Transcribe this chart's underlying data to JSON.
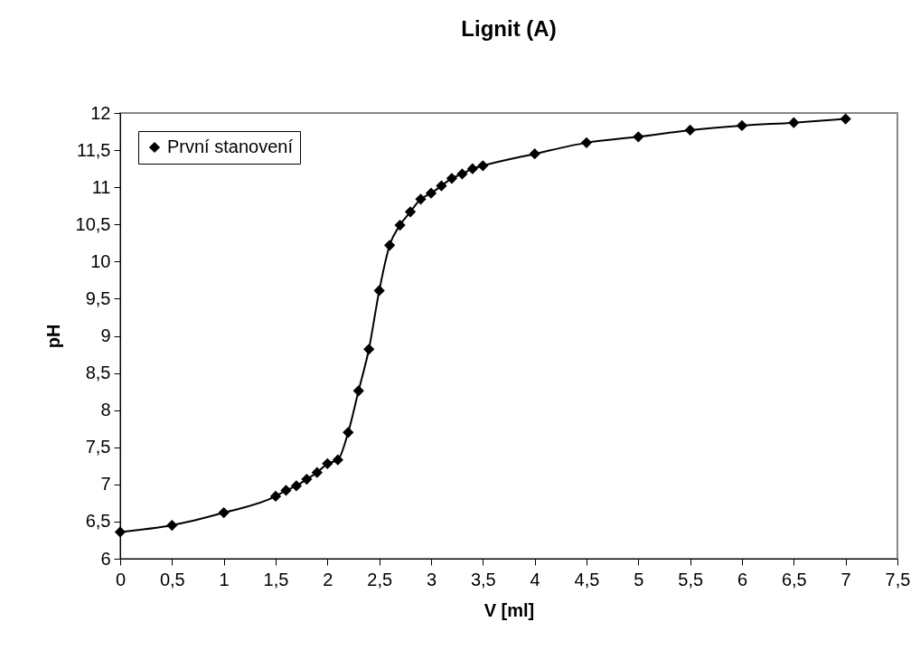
{
  "chart_data": {
    "type": "line",
    "title": "Lignit (A)",
    "xlabel": "V [ml]",
    "ylabel": "pH",
    "x": [
      0,
      0.5,
      1,
      1.5,
      1.6,
      1.7,
      1.8,
      1.9,
      2.0,
      2.1,
      2.2,
      2.3,
      2.4,
      2.5,
      2.6,
      2.7,
      2.8,
      2.9,
      3.0,
      3.1,
      3.2,
      3.3,
      3.4,
      3.5,
      4,
      4.5,
      5,
      5.5,
      6,
      6.5,
      7
    ],
    "series": [
      {
        "name": "První stanovení",
        "color": "#000000",
        "values": [
          6.36,
          6.45,
          6.62,
          6.84,
          6.92,
          6.98,
          7.07,
          7.16,
          7.28,
          7.33,
          7.7,
          8.26,
          8.82,
          9.61,
          10.22,
          10.49,
          10.67,
          10.84,
          10.92,
          11.02,
          11.12,
          11.18,
          11.25,
          11.29,
          11.45,
          11.6,
          11.68,
          11.77,
          11.83,
          11.87,
          11.92
        ]
      }
    ],
    "xlim": [
      0,
      7.5
    ],
    "xticks": [
      0,
      {
        "value": 0.5,
        "label": "0,5"
      },
      1,
      {
        "value": 1.5,
        "label": "1,5"
      },
      2,
      {
        "value": 2.5,
        "label": "2,5"
      },
      3,
      {
        "value": 3.5,
        "label": "3,5"
      },
      4,
      {
        "value": 4.5,
        "label": "4,5"
      },
      5,
      {
        "value": 5.5,
        "label": "5,5"
      },
      6,
      {
        "value": 6.5,
        "label": "6,5"
      },
      7,
      {
        "value": 7.5,
        "label": "7,5"
      }
    ],
    "ylim": [
      6,
      12
    ],
    "yticks": [
      6,
      {
        "value": 6.5,
        "label": "6,5"
      },
      7,
      {
        "value": 7.5,
        "label": "7,5"
      },
      8,
      {
        "value": 8.5,
        "label": "8,5"
      },
      9,
      {
        "value": 9.5,
        "label": "9,5"
      },
      10,
      {
        "value": 10.5,
        "label": "10,5"
      },
      11,
      {
        "value": 11.5,
        "label": "11,5"
      },
      12
    ],
    "grid": false,
    "legend": "top left",
    "marker": "diamond",
    "line_style": "solid"
  }
}
